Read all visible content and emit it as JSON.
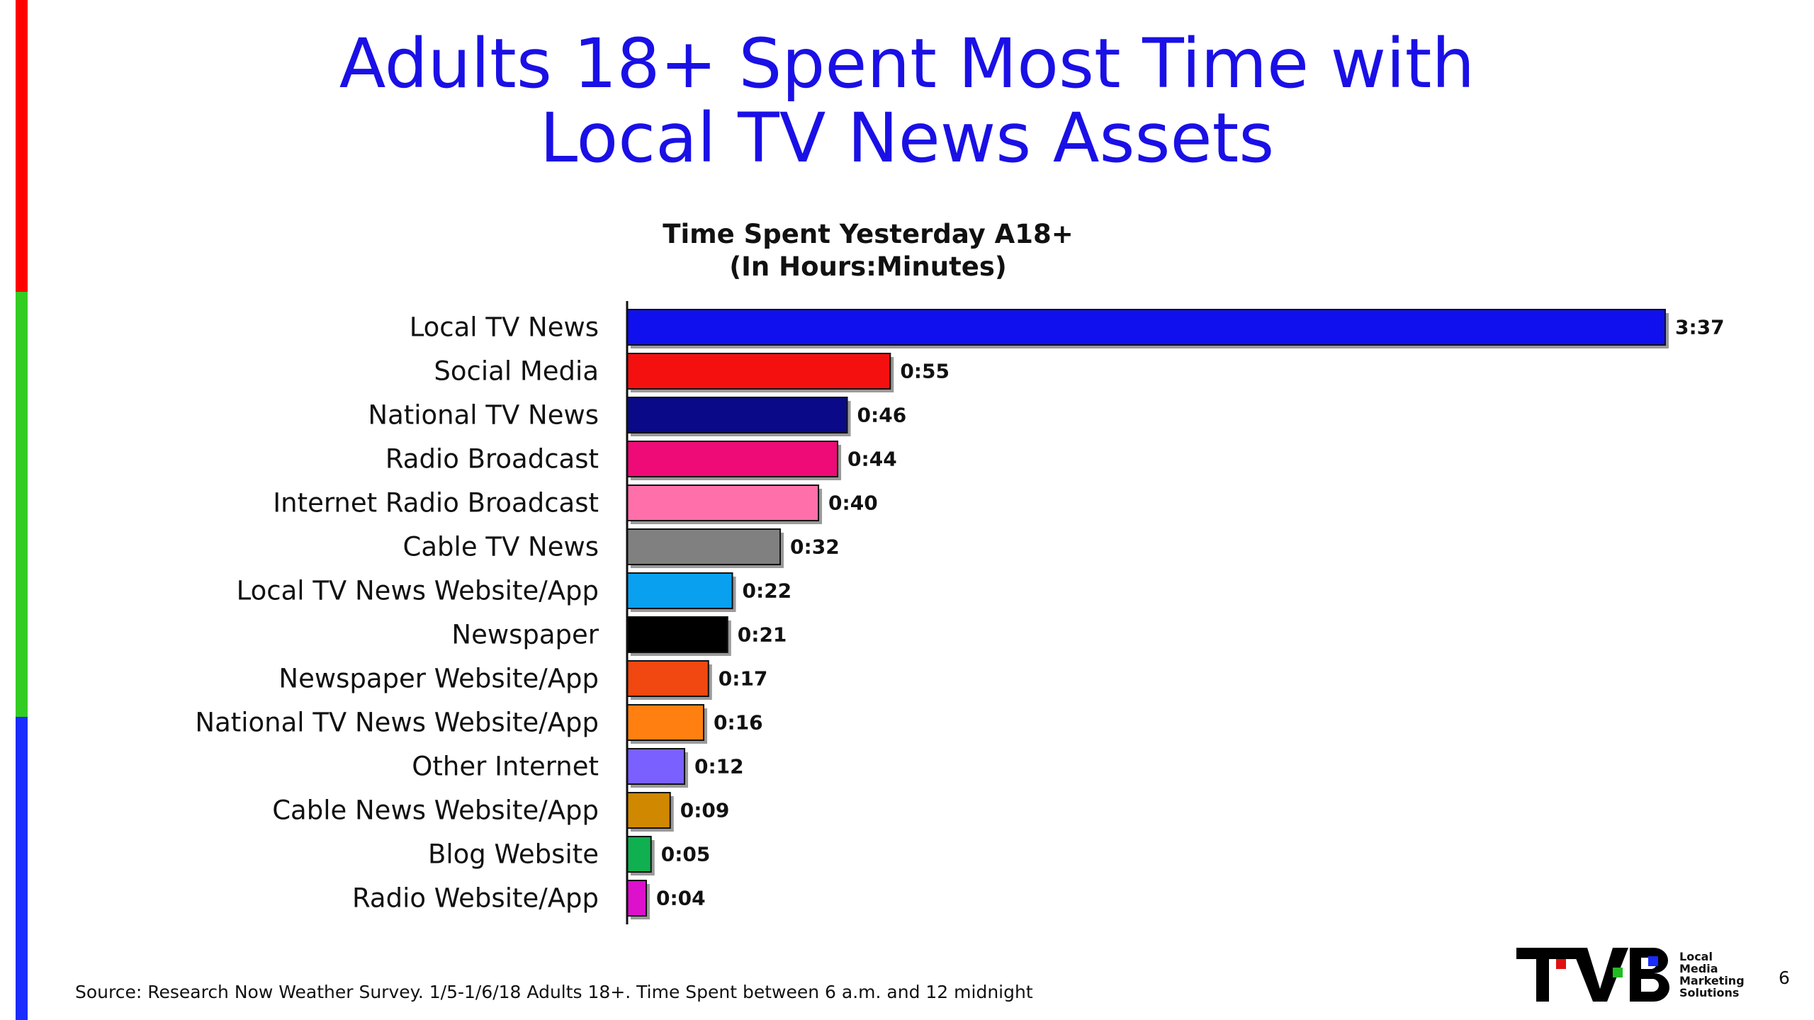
{
  "slide": {
    "title_line1": "Adults 18+ Spent Most Time with",
    "title_line2": "Local TV News Assets",
    "source": "Source: Research Now Weather Survey. 1/5-1/6/18 Adults 18+. Time Spent between 6 a.m. and 12 midnight",
    "page_number": "6"
  },
  "logo": {
    "text": "TVB",
    "tagline": [
      "Local",
      "Media",
      "Marketing",
      "Solutions"
    ]
  },
  "sidebar_colors": [
    "#ff0000",
    "#33cc22",
    "#1a2cff"
  ],
  "chart_data": {
    "type": "bar",
    "orientation": "horizontal",
    "title_line1": "Time Spent Yesterday A18+",
    "title_line2": "(In Hours:Minutes)",
    "unit": "minutes",
    "categories": [
      "Local TV News",
      "Social Media",
      "National TV News",
      "Radio Broadcast",
      "Internet Radio Broadcast",
      "Cable TV News",
      "Local TV News Website/App",
      "Newspaper",
      "Newspaper Website/App",
      "National TV News Website/App",
      "Other Internet",
      "Cable News Website/App",
      "Blog Website",
      "Radio Website/App"
    ],
    "values": [
      217,
      55,
      46,
      44,
      40,
      32,
      22,
      21,
      17,
      16,
      12,
      9,
      5,
      4
    ],
    "data_labels": [
      "3:37",
      "0:55",
      "0:46",
      "0:44",
      "0:40",
      "0:32",
      "0:22",
      "0:21",
      "0:17",
      "0:16",
      "0:12",
      "0:09",
      "0:05",
      "0:04"
    ],
    "colors": [
      "#1010ee",
      "#f51010",
      "#0a0a88",
      "#ee0a77",
      "#ff70aa",
      "#808080",
      "#0aa0f0",
      "#000000",
      "#f04810",
      "#ff8010",
      "#7a60ff",
      "#d08800",
      "#10b050",
      "#dd10cc"
    ],
    "xlim": [
      0,
      217
    ],
    "grid": false,
    "legend": "none"
  }
}
